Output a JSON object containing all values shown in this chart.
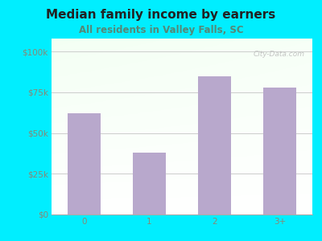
{
  "title": "Median family income by earners",
  "subtitle": "All residents in Valley Falls, SC",
  "categories": [
    "0",
    "1",
    "2",
    "3+"
  ],
  "values": [
    62000,
    38000,
    85000,
    78000
  ],
  "bar_color": "#b8a8cc",
  "background_color": "#00eeff",
  "title_color": "#222222",
  "subtitle_color": "#558877",
  "axis_label_color": "#888877",
  "yticks": [
    0,
    25000,
    50000,
    75000,
    100000
  ],
  "ytick_labels": [
    "$0",
    "$25k",
    "$50k",
    "$75k",
    "$100k"
  ],
  "ylim": [
    0,
    108000
  ],
  "watermark": "City-Data.com",
  "title_fontsize": 11,
  "subtitle_fontsize": 8.5,
  "tick_fontsize": 7.5
}
